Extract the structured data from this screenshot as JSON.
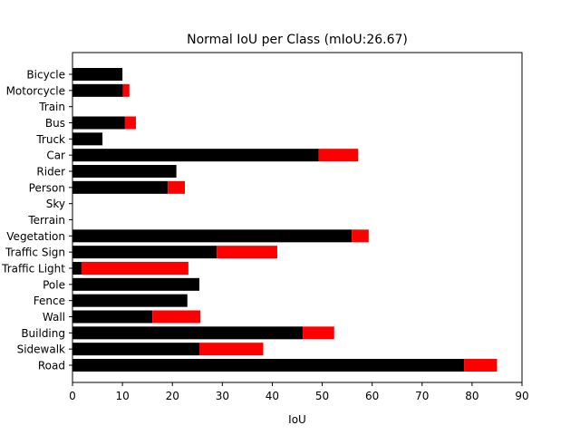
{
  "chart_data": {
    "type": "bar",
    "orientation": "horizontal",
    "stacked": true,
    "title": "Normal IoU per Class (mIoU:26.67)",
    "xlabel": "IoU",
    "ylabel": "",
    "xlim": [
      0,
      90
    ],
    "xticks": [
      0,
      10,
      20,
      30,
      40,
      50,
      60,
      70,
      80,
      90
    ],
    "grid": false,
    "legend": "none",
    "categories": [
      "Road",
      "Sidewalk",
      "Building",
      "Wall",
      "Fence",
      "Pole",
      "Traffic Light",
      "Traffic Sign",
      "Vegetation",
      "Terrain",
      "Sky",
      "Person",
      "Rider",
      "Car",
      "Truck",
      "Bus",
      "Train",
      "Motorcycle",
      "Bicycle"
    ],
    "series": [
      {
        "color": "#000000",
        "values": [
          78.4,
          25.4,
          46.1,
          16.0,
          23.0,
          25.4,
          1.8,
          28.9,
          55.9,
          0,
          0,
          19.1,
          20.8,
          49.3,
          6.0,
          10.5,
          0,
          10.1,
          10.0
        ]
      },
      {
        "color": "#ff0000",
        "values": [
          6.6,
          12.8,
          6.3,
          9.6,
          0,
          0,
          21.4,
          12.1,
          3.4,
          0,
          0,
          3.4,
          0,
          7.9,
          0,
          2.2,
          0,
          1.3,
          0
        ]
      }
    ]
  }
}
